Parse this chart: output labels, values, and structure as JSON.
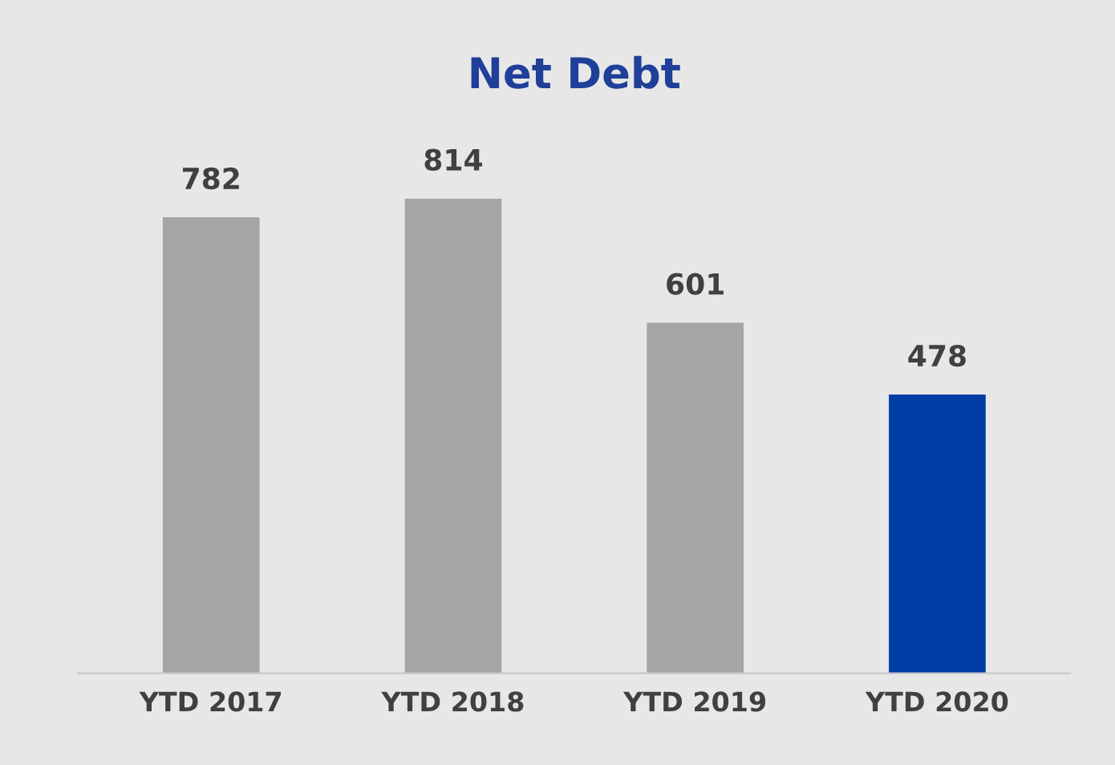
{
  "chart_data": {
    "type": "bar",
    "title": "Net Debt",
    "categories": [
      "YTD 2017",
      "YTD 2018",
      "YTD 2019",
      "YTD 2020"
    ],
    "values": [
      782,
      814,
      601,
      478
    ],
    "colors": [
      "#a5a5a5",
      "#a5a5a5",
      "#a5a5a5",
      "#003da5"
    ],
    "data_labels": true,
    "grid": false,
    "legend": false
  }
}
